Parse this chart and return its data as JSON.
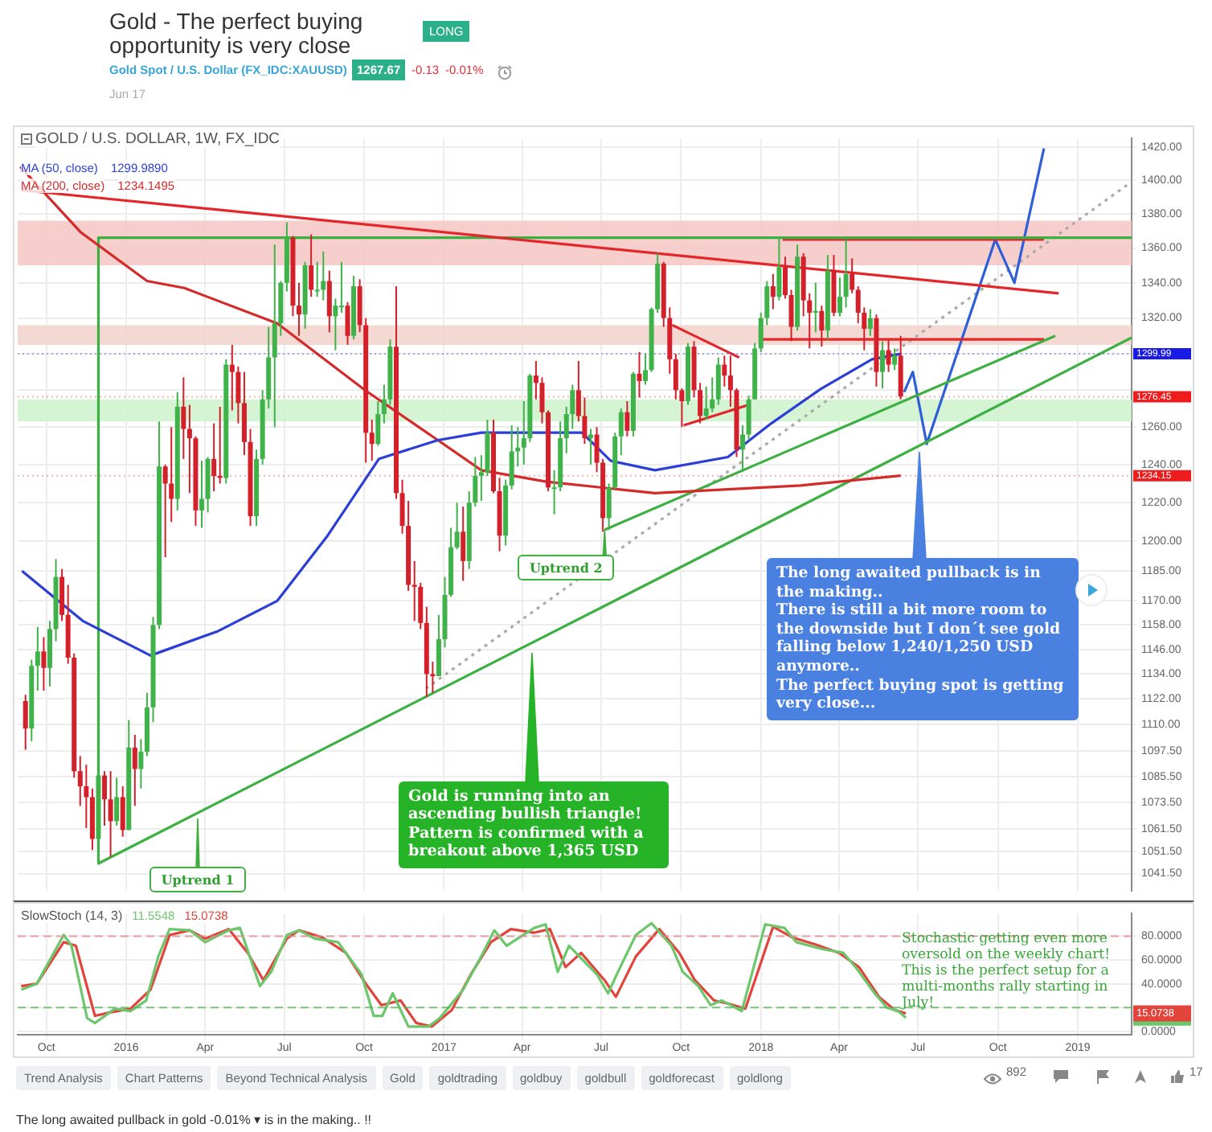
{
  "chart_data": [
    {
      "type": "candlestick",
      "title": "Gold - The perfect buying opportunity is very close",
      "subtitle": "GOLD / U.S. DOLLAR, 1W, FX_IDC",
      "series": [
        {
          "type": "candlestick",
          "x": [
            "2015-09-07",
            "2015-09-14",
            "2015-09-21",
            "2015-09-28",
            "2015-10-05",
            "2015-10-12",
            "2015-10-19",
            "2015-10-26",
            "2015-11-02",
            "2015-11-09",
            "2015-11-16",
            "2015-11-23",
            "2015-11-30",
            "2015-12-07",
            "2015-12-14",
            "2015-12-21",
            "2015-12-28",
            "2016-01-04",
            "2016-01-11",
            "2016-01-18",
            "2016-01-25",
            "2016-02-01",
            "2016-02-08",
            "2016-02-15",
            "2016-02-22",
            "2016-02-29",
            "2016-03-07",
            "2016-03-14",
            "2016-03-21",
            "2016-03-28",
            "2016-04-04",
            "2016-04-11",
            "2016-04-18",
            "2016-04-25",
            "2016-05-02",
            "2016-05-09",
            "2016-05-16",
            "2016-05-23",
            "2016-05-30",
            "2016-06-06",
            "2016-06-13",
            "2016-06-20",
            "2016-06-27",
            "2016-07-04",
            "2016-07-11",
            "2016-07-18",
            "2016-07-25",
            "2016-08-01",
            "2016-08-08",
            "2016-08-15",
            "2016-08-22",
            "2016-08-29",
            "2016-09-05",
            "2016-09-12",
            "2016-09-19",
            "2016-09-26",
            "2016-10-03",
            "2016-10-10",
            "2016-10-17",
            "2016-10-24",
            "2016-10-31",
            "2016-11-07",
            "2016-11-14",
            "2016-11-21",
            "2016-11-28",
            "2016-12-05",
            "2016-12-12",
            "2016-12-19",
            "2016-12-26",
            "2017-01-02",
            "2017-01-09",
            "2017-01-16",
            "2017-01-23",
            "2017-01-30",
            "2017-02-06",
            "2017-02-13",
            "2017-02-20",
            "2017-02-27",
            "2017-03-06",
            "2017-03-13",
            "2017-03-20",
            "2017-03-27",
            "2017-04-03",
            "2017-04-10",
            "2017-04-17",
            "2017-04-24",
            "2017-05-01",
            "2017-05-08",
            "2017-05-15",
            "2017-05-22",
            "2017-05-29",
            "2017-06-05",
            "2017-06-12",
            "2017-06-19",
            "2017-06-26",
            "2017-07-03",
            "2017-07-10",
            "2017-07-17",
            "2017-07-24",
            "2017-07-31",
            "2017-08-07",
            "2017-08-14",
            "2017-08-21",
            "2017-08-28",
            "2017-09-04",
            "2017-09-11",
            "2017-09-18",
            "2017-09-25",
            "2017-10-02",
            "2017-10-09",
            "2017-10-16",
            "2017-10-23",
            "2017-10-30",
            "2017-11-06",
            "2017-11-13",
            "2017-11-20",
            "2017-11-27",
            "2017-12-04",
            "2017-12-11",
            "2017-12-18",
            "2017-12-25",
            "2018-01-01",
            "2018-01-08",
            "2018-01-15",
            "2018-01-22",
            "2018-01-29",
            "2018-02-05",
            "2018-02-12",
            "2018-02-19",
            "2018-02-26",
            "2018-03-05",
            "2018-03-12",
            "2018-03-19",
            "2018-03-26",
            "2018-04-02",
            "2018-04-09",
            "2018-04-16",
            "2018-04-23",
            "2018-04-30",
            "2018-05-07",
            "2018-05-14",
            "2018-05-21",
            "2018-05-28",
            "2018-06-04",
            "2018-06-11"
          ],
          "ohlc": [
            [
              1121,
              1124,
              1098,
              1108
            ],
            [
              1108,
              1141,
              1102,
              1138
            ],
            [
              1138,
              1157,
              1126,
              1145
            ],
            [
              1145,
              1152,
              1126,
              1137
            ],
            [
              1137,
              1160,
              1128,
              1156
            ],
            [
              1156,
              1191,
              1150,
              1182
            ],
            [
              1182,
              1186,
              1160,
              1163
            ],
            [
              1163,
              1178,
              1139,
              1142
            ],
            [
              1142,
              1144,
              1085,
              1088
            ],
            [
              1088,
              1095,
              1072,
              1081
            ],
            [
              1081,
              1091,
              1062,
              1076
            ],
            [
              1076,
              1080,
              1052,
              1057
            ],
            [
              1057,
              1088,
              1046,
              1086
            ],
            [
              1086,
              1088,
              1063,
              1075
            ],
            [
              1075,
              1088,
              1049,
              1065
            ],
            [
              1065,
              1085,
              1063,
              1076
            ],
            [
              1076,
              1081,
              1058,
              1061
            ],
            [
              1061,
              1112,
              1061,
              1099
            ],
            [
              1099,
              1105,
              1072,
              1089
            ],
            [
              1089,
              1103,
              1080,
              1097
            ],
            [
              1097,
              1125,
              1095,
              1118
            ],
            [
              1118,
              1162,
              1111,
              1158
            ],
            [
              1158,
              1263,
              1156,
              1239
            ],
            [
              1239,
              1240,
              1192,
              1230
            ],
            [
              1230,
              1260,
              1210,
              1222
            ],
            [
              1222,
              1279,
              1216,
              1271
            ],
            [
              1271,
              1287,
              1243,
              1259
            ],
            [
              1259,
              1272,
              1225,
              1254
            ],
            [
              1254,
              1255,
              1208,
              1216
            ],
            [
              1216,
              1242,
              1207,
              1222
            ],
            [
              1222,
              1244,
              1215,
              1243
            ],
            [
              1243,
              1262,
              1226,
              1234
            ],
            [
              1234,
              1271,
              1230,
              1233
            ],
            [
              1233,
              1297,
              1230,
              1294
            ],
            [
              1294,
              1305,
              1269,
              1290
            ],
            [
              1290,
              1293,
              1262,
              1273
            ],
            [
              1273,
              1290,
              1245,
              1252
            ],
            [
              1252,
              1259,
              1208,
              1213
            ],
            [
              1213,
              1248,
              1208,
              1243
            ],
            [
              1243,
              1280,
              1240,
              1275
            ],
            [
              1275,
              1315,
              1270,
              1298
            ],
            [
              1298,
              1362,
              1260,
              1317
            ],
            [
              1317,
              1341,
              1310,
              1340
            ],
            [
              1340,
              1375,
              1335,
              1366
            ],
            [
              1366,
              1367,
              1321,
              1327
            ],
            [
              1327,
              1340,
              1310,
              1322
            ],
            [
              1322,
              1352,
              1314,
              1350
            ],
            [
              1350,
              1368,
              1332,
              1336
            ],
            [
              1336,
              1352,
              1332,
              1336
            ],
            [
              1336,
              1358,
              1330,
              1341
            ],
            [
              1341,
              1347,
              1312,
              1321
            ],
            [
              1321,
              1331,
              1302,
              1327
            ],
            [
              1327,
              1352,
              1323,
              1327
            ],
            [
              1327,
              1329,
              1305,
              1310
            ],
            [
              1310,
              1344,
              1308,
              1338
            ],
            [
              1338,
              1342,
              1312,
              1316
            ],
            [
              1316,
              1320,
              1241,
              1257
            ],
            [
              1257,
              1264,
              1242,
              1251
            ],
            [
              1251,
              1274,
              1250,
              1267
            ],
            [
              1267,
              1283,
              1262,
              1275
            ],
            [
              1275,
              1308,
              1272,
              1304
            ],
            [
              1304,
              1338,
              1222,
              1225
            ],
            [
              1225,
              1232,
              1204,
              1208
            ],
            [
              1208,
              1221,
              1175,
              1178
            ],
            [
              1178,
              1190,
              1160,
              1177
            ],
            [
              1177,
              1179,
              1156,
              1159
            ],
            [
              1159,
              1167,
              1123,
              1134
            ],
            [
              1134,
              1140,
              1125,
              1133
            ],
            [
              1133,
              1163,
              1133,
              1151
            ],
            [
              1151,
              1182,
              1147,
              1173
            ],
            [
              1173,
              1207,
              1172,
              1197
            ],
            [
              1197,
              1220,
              1196,
              1205
            ],
            [
              1205,
              1218,
              1180,
              1190
            ],
            [
              1190,
              1226,
              1186,
              1220
            ],
            [
              1220,
              1244,
              1218,
              1234
            ],
            [
              1234,
              1245,
              1221,
              1236
            ],
            [
              1236,
              1264,
              1234,
              1257
            ],
            [
              1257,
              1264,
              1225,
              1226
            ],
            [
              1226,
              1233,
              1195,
              1203
            ],
            [
              1203,
              1232,
              1198,
              1229
            ],
            [
              1229,
              1261,
              1227,
              1247
            ],
            [
              1247,
              1260,
              1239,
              1249
            ],
            [
              1249,
              1274,
              1240,
              1254
            ],
            [
              1254,
              1289,
              1252,
              1288
            ],
            [
              1288,
              1296,
              1275,
              1284
            ],
            [
              1284,
              1287,
              1262,
              1268
            ],
            [
              1268,
              1269,
              1226,
              1228
            ],
            [
              1228,
              1237,
              1214,
              1228
            ],
            [
              1228,
              1263,
              1226,
              1254
            ],
            [
              1254,
              1271,
              1246,
              1267
            ],
            [
              1267,
              1283,
              1259,
              1280
            ],
            [
              1280,
              1296,
              1263,
              1266
            ],
            [
              1266,
              1276,
              1251,
              1254
            ],
            [
              1254,
              1259,
              1240,
              1256
            ],
            [
              1256,
              1260,
              1236,
              1241
            ],
            [
              1241,
              1243,
              1205,
              1212
            ],
            [
              1212,
              1230,
              1206,
              1228
            ],
            [
              1228,
              1257,
              1227,
              1255
            ],
            [
              1255,
              1270,
              1245,
              1268
            ],
            [
              1268,
              1274,
              1255,
              1258
            ],
            [
              1258,
              1290,
              1255,
              1289
            ],
            [
              1289,
              1301,
              1276,
              1285
            ],
            [
              1285,
              1300,
              1283,
              1291
            ],
            [
              1291,
              1326,
              1290,
              1325
            ],
            [
              1325,
              1357,
              1323,
              1351
            ],
            [
              1351,
              1352,
              1315,
              1320
            ],
            [
              1320,
              1326,
              1289,
              1297
            ],
            [
              1297,
              1300,
              1275,
              1280
            ],
            [
              1280,
              1281,
              1260,
              1274
            ],
            [
              1274,
              1306,
              1272,
              1304
            ],
            [
              1304,
              1307,
              1276,
              1280
            ],
            [
              1280,
              1284,
              1262,
              1266
            ],
            [
              1266,
              1282,
              1264,
              1270
            ],
            [
              1270,
              1287,
              1268,
              1275
            ],
            [
              1275,
              1298,
              1272,
              1294
            ],
            [
              1294,
              1299,
              1282,
              1288
            ],
            [
              1288,
              1299,
              1271,
              1280
            ],
            [
              1280,
              1281,
              1244,
              1248
            ],
            [
              1248,
              1261,
              1236,
              1256
            ],
            [
              1256,
              1277,
              1253,
              1275
            ],
            [
              1275,
              1306,
              1275,
              1303
            ],
            [
              1303,
              1323,
              1301,
              1320
            ],
            [
              1320,
              1341,
              1316,
              1338
            ],
            [
              1338,
              1345,
              1325,
              1332
            ],
            [
              1332,
              1366,
              1330,
              1349
            ],
            [
              1349,
              1355,
              1331,
              1333
            ],
            [
              1333,
              1336,
              1307,
              1315
            ],
            [
              1315,
              1362,
              1313,
              1355
            ],
            [
              1355,
              1357,
              1321,
              1330
            ],
            [
              1330,
              1334,
              1303,
              1323
            ],
            [
              1323,
              1340,
              1312,
              1324
            ],
            [
              1324,
              1327,
              1304,
              1313
            ],
            [
              1313,
              1356,
              1308,
              1347
            ],
            [
              1347,
              1356,
              1321,
              1323
            ],
            [
              1323,
              1343,
              1321,
              1332
            ],
            [
              1332,
              1365,
              1326,
              1345
            ],
            [
              1345,
              1354,
              1334,
              1336
            ],
            [
              1336,
              1338,
              1317,
              1323
            ],
            [
              1323,
              1326,
              1302,
              1314
            ],
            [
              1314,
              1325,
              1310,
              1320
            ],
            [
              1320,
              1322,
              1282,
              1290
            ],
            [
              1290,
              1307,
              1281,
              1302
            ],
            [
              1302,
              1308,
              1290,
              1294
            ],
            [
              1294,
              1303,
              1291,
              1299
            ],
            [
              1299,
              1310,
              1275,
              1276.45
            ]
          ]
        },
        {
          "type": "line",
          "name": "MA (50, close)",
          "color": "#2b3fd6",
          "x": [
            "2015-09-03",
            "2015-11-12",
            "2016-01-29",
            "2016-04-16",
            "2016-06-23",
            "2016-08-20",
            "2016-10-18",
            "2016-12-25",
            "2017-02-13",
            "2017-06-09",
            "2017-07-12",
            "2017-09-01",
            "2017-11-24",
            "2018-01-13",
            "2018-03-12",
            "2018-05-09",
            "2018-06-11"
          ],
          "values": [
            1185,
            1160,
            1143,
            1155,
            1170,
            1203,
            1243,
            1253,
            1257,
            1257,
            1242,
            1237,
            1244,
            1262,
            1281,
            1297,
            1299.99
          ]
        },
        {
          "type": "line",
          "name": "MA (200, close)",
          "color": "#d42a2a",
          "x": [
            "2015-09-01",
            "2015-11-10",
            "2016-01-25",
            "2016-03-08",
            "2016-06-23",
            "2016-10-02",
            "2016-12-25",
            "2017-02-13",
            "2017-04-29",
            "2017-09-01",
            "2017-11-24",
            "2018-02-16",
            "2018-06-11"
          ],
          "values": [
            1408,
            1369,
            1341,
            1337,
            1317,
            1280,
            1253,
            1237,
            1231,
            1225,
            1227,
            1229,
            1234.15
          ]
        },
        {
          "type": "line",
          "color": "#e3262a",
          "x": [
            "2015-09-02",
            "2018-12-10"
          ],
          "values": [
            1394,
            1334
          ]
        },
        {
          "type": "line",
          "color": "#3cb043",
          "x": [
            "2015-11-30",
            "2019-03-04"
          ],
          "values": [
            1366,
            1366
          ]
        },
        {
          "type": "line",
          "color": "#3cb043",
          "x": [
            "2015-11-30",
            "2015-11-30"
          ],
          "values": [
            1366,
            1046
          ]
        },
        {
          "type": "line",
          "color": "#3cb043",
          "x": [
            "2015-11-30",
            "2019-03-04"
          ],
          "values": [
            1046,
            1309
          ]
        },
        {
          "type": "line",
          "color": "#3cb043",
          "x": [
            "2017-07-05",
            "2018-12-06"
          ],
          "values": [
            1206,
            1310
          ]
        },
        {
          "type": "line",
          "color": "#e3262a",
          "x": [
            "2018-01-26",
            "2018-11-23"
          ],
          "values": [
            1365,
            1365
          ]
        },
        {
          "type": "line",
          "color": "#e3262a",
          "x": [
            "2017-12-31",
            "2018-11-23"
          ],
          "values": [
            1308,
            1308
          ]
        },
        {
          "type": "line",
          "color": "#e3262a",
          "x": [
            "2017-09-21",
            "2017-12-07"
          ],
          "values": [
            1316,
            1298
          ]
        },
        {
          "type": "line",
          "color": "#e3262a",
          "x": [
            "2017-10-04",
            "2017-12-18"
          ],
          "values": [
            1261,
            1272
          ]
        },
        {
          "type": "line",
          "color": "#2f5fd8",
          "x": [
            "2018-06-15",
            "2018-06-25",
            "2018-07-11",
            "2018-09-28",
            "2018-10-20",
            "2018-11-23"
          ],
          "values": [
            1279,
            1290,
            1251,
            1365,
            1340,
            1419
          ]
        },
        {
          "type": "line",
          "color": "#aaaaaa",
          "line_style": "dotted",
          "x": [
            "2016-12-11",
            "2019-03-04"
          ],
          "values": [
            1127,
            1399
          ]
        }
      ],
      "xlim": [
        "2015-08-29",
        "2019-03-04"
      ],
      "ylim": [
        1034,
        1425
      ],
      "log": true,
      "xticks": [
        {
          "value": "2015-10-01",
          "label": null
        },
        {
          "value": "2016-01-01",
          "label": null
        },
        {
          "value": "2016-04-01",
          "label": null
        },
        {
          "value": "2016-07-01",
          "label": null
        },
        {
          "value": "2016-10-01",
          "label": null
        },
        {
          "value": "2017-01-01",
          "label": null
        },
        {
          "value": "2017-04-01",
          "label": null
        },
        {
          "value": "2017-07-01",
          "label": null
        },
        {
          "value": "2017-10-01",
          "label": null
        },
        {
          "value": "2018-01-01",
          "label": null
        },
        {
          "value": "2018-04-01",
          "label": null
        },
        {
          "value": "2018-07-01",
          "label": null
        },
        {
          "value": "2018-10-01",
          "label": null
        },
        {
          "value": "2019-01-01",
          "label": null
        }
      ],
      "yticks": [
        {
          "value": 1041.5,
          "label": "1041.50"
        },
        {
          "value": 1051.5,
          "label": "1051.50"
        },
        {
          "value": 1061.5,
          "label": "1061.50"
        },
        {
          "value": 1073.5,
          "label": "1073.50"
        },
        {
          "value": 1085.5,
          "label": "1085.50"
        },
        {
          "value": 1097.5,
          "label": "1097.50"
        },
        {
          "value": 1110,
          "label": "1110.00"
        },
        {
          "value": 1122,
          "label": "1122.00"
        },
        {
          "value": 1134,
          "label": "1134.00"
        },
        {
          "value": 1146,
          "label": "1146.00"
        },
        {
          "value": 1158,
          "label": "1158.00"
        },
        {
          "value": 1170,
          "label": "1170.00"
        },
        {
          "value": 1185,
          "label": "1185.00"
        },
        {
          "value": 1200,
          "label": "1200.00"
        },
        {
          "value": 1220,
          "label": "1220.00"
        },
        {
          "value": 1240,
          "label": "1240.00"
        },
        {
          "value": 1260,
          "label": "1260.00"
        },
        {
          "value": 1280,
          "label": null
        },
        {
          "value": 1300,
          "label": null
        },
        {
          "value": 1320,
          "label": "1320.00"
        },
        {
          "value": 1340,
          "label": "1340.00"
        },
        {
          "value": 1360,
          "label": "1360.00"
        },
        {
          "value": 1380,
          "label": "1380.00"
        },
        {
          "value": 1400,
          "label": "1400.00"
        },
        {
          "value": 1420,
          "label": "1420.00"
        }
      ],
      "grid": true,
      "legend": "top left",
      "tick_labels": "y",
      "ref_lines": [
        {
          "axis": "y",
          "value": 1299.99,
          "label": "1299.99",
          "color": "#1a1ae6"
        },
        {
          "axis": "y",
          "value": 1276.45,
          "label": "1276.45",
          "color": "#ee1c1c"
        },
        {
          "axis": "y",
          "value": 1234.15,
          "label": "1234.15",
          "color": "#ee1c1c"
        }
      ],
      "bands": [
        {
          "axis": "y",
          "from": 1350,
          "to": 1376,
          "color": "#f5c7c3"
        },
        {
          "axis": "y",
          "from": 1305,
          "to": 1316,
          "color": "#f2d2ca"
        },
        {
          "axis": "y",
          "from": 1263,
          "to": 1275,
          "color": "#cdf2cd"
        }
      ],
      "annotations": [
        "1299.9890",
        "1234.1495",
        "LONG",
        "Gold Spot / U.S. Dollar (FX_IDC:XAUUSD)",
        "1267.67",
        "-0.13",
        "-0.01%",
        "Jun 17",
        "Trend Analysis",
        "Chart Patterns",
        "Beyond Technical Analysis",
        "Gold",
        "goldtrading",
        "goldbuy",
        "goldbull",
        "goldforecast",
        "goldlong",
        "892",
        "17",
        "The long awaited pullback in gold -0.01% ▾ is in the making.. !!",
        {
          "text": "Uptrend 2",
          "x": "2017-07-05",
          "y": 1206
        },
        "Uptrend 1",
        "Gold is running into an ascending bullish triangle! Pattern is confirmed with a breakout above 1,365 USD",
        "The long awaited pullback is in the making..\nThere is still a bit more room to the downside but I don´t see gold falling below 1,240/1,250 USD anymore..\nThe perfect buying spot is getting very close..."
      ]
    },
    {
      "type": "line",
      "title": "SlowStoch (14, 3)",
      "series": [
        {
          "name": "11.5548",
          "color": "#6cc66c",
          "x": [
            "2015-09-02",
            "2015-09-20",
            "2015-10-21",
            "2015-10-30",
            "2015-11-17",
            "2015-11-26",
            "2015-12-19",
            "2016-01-06",
            "2016-01-24",
            "2016-02-07",
            "2016-02-20",
            "2016-03-14",
            "2016-04-01",
            "2016-04-28",
            "2016-05-11",
            "2016-06-03",
            "2016-06-16",
            "2016-07-04",
            "2016-07-18",
            "2016-08-05",
            "2016-09-01",
            "2016-09-28",
            "2016-10-12",
            "2016-10-22",
            "2016-11-03",
            "2016-11-21",
            "2016-12-14",
            "2016-12-27",
            "2017-01-23",
            "2017-02-15",
            "2017-02-28",
            "2017-03-14",
            "2017-04-15",
            "2017-04-28",
            "2017-05-12",
            "2017-05-25",
            "2017-06-26",
            "2017-07-09",
            "2017-07-23",
            "2017-08-10",
            "2017-08-28",
            "2017-09-20",
            "2017-10-03",
            "2017-10-21",
            "2017-11-04",
            "2017-11-17",
            "2017-12-10",
            "2018-01-06",
            "2018-01-28",
            "2018-02-11",
            "2018-03-14",
            "2018-04-06",
            "2018-04-20",
            "2018-05-12",
            "2018-05-26",
            "2018-06-08",
            "2018-06-17"
          ],
          "values": [
            35,
            40,
            81,
            72,
            11,
            7,
            19,
            17,
            26,
            63,
            86,
            85,
            75,
            85,
            87,
            38,
            50,
            81,
            85,
            78,
            75,
            48,
            13,
            13,
            32,
            4,
            4,
            11,
            35,
            66,
            85,
            72,
            87,
            90,
            50,
            72,
            48,
            32,
            54,
            81,
            91,
            72,
            50,
            38,
            22,
            26,
            17,
            90,
            87,
            75,
            69,
            66,
            54,
            32,
            20,
            17,
            11.5548
          ]
        },
        {
          "name": "15.0738",
          "color": "#e2443c",
          "x": [
            "2015-09-02",
            "2015-09-20",
            "2015-10-21",
            "2015-11-04",
            "2015-11-26",
            "2015-12-14",
            "2016-01-06",
            "2016-01-29",
            "2016-02-20",
            "2016-03-14",
            "2016-04-01",
            "2016-04-28",
            "2016-05-20",
            "2016-06-07",
            "2016-07-04",
            "2016-07-18",
            "2016-08-14",
            "2016-09-10",
            "2016-10-03",
            "2016-10-21",
            "2016-11-12",
            "2016-11-30",
            "2016-12-18",
            "2017-01-10",
            "2017-02-01",
            "2017-02-24",
            "2017-03-19",
            "2017-04-15",
            "2017-05-03",
            "2017-05-21",
            "2017-06-08",
            "2017-07-05",
            "2017-07-18",
            "2017-08-10",
            "2017-09-06",
            "2017-09-29",
            "2017-10-17",
            "2017-11-08",
            "2017-11-26",
            "2017-12-14",
            "2018-01-15",
            "2018-02-06",
            "2018-03-05",
            "2018-04-01",
            "2018-04-24",
            "2018-05-17",
            "2018-06-04",
            "2018-06-17"
          ],
          "values": [
            38,
            40,
            75,
            72,
            13,
            16,
            19,
            35,
            81,
            85,
            78,
            86,
            66,
            43,
            78,
            85,
            79,
            66,
            40,
            22,
            26,
            7,
            4,
            18,
            48,
            75,
            86,
            83,
            86,
            54,
            66,
            43,
            29,
            63,
            86,
            66,
            43,
            26,
            23,
            19,
            88,
            79,
            73,
            66,
            54,
            29,
            18,
            15.0738
          ]
        }
      ],
      "xlim": [
        "2015-08-29",
        "2019-03-04"
      ],
      "ylim": [
        -3,
        99
      ],
      "xticks": [
        {
          "value": "2015-10-01",
          "label": "Oct"
        },
        {
          "value": "2016-01-01",
          "label": "2016"
        },
        {
          "value": "2016-04-01",
          "label": "Apr"
        },
        {
          "value": "2016-07-01",
          "label": "Jul"
        },
        {
          "value": "2016-10-01",
          "label": "Oct"
        },
        {
          "value": "2017-01-01",
          "label": "2017"
        },
        {
          "value": "2017-04-01",
          "label": "Apr"
        },
        {
          "value": "2017-07-01",
          "label": "Jul"
        },
        {
          "value": "2017-10-01",
          "label": "Oct"
        },
        {
          "value": "2018-01-01",
          "label": "2018"
        },
        {
          "value": "2018-04-01",
          "label": "Apr"
        },
        {
          "value": "2018-07-01",
          "label": "Jul"
        },
        {
          "value": "2018-10-01",
          "label": "Oct"
        },
        {
          "value": "2019-01-01",
          "label": "2019"
        }
      ],
      "yticks": [
        {
          "value": 0,
          "label": "0.0000"
        },
        {
          "value": 20,
          "label": null
        },
        {
          "value": 40,
          "label": "40.0000"
        },
        {
          "value": 60,
          "label": "60.0000"
        },
        {
          "value": 80,
          "label": "80.0000"
        }
      ],
      "grid": true,
      "legend": "top left",
      "ref_lines": [
        {
          "axis": "y",
          "value": 80,
          "color": "#e08a8a",
          "line_style": "dashed"
        },
        {
          "axis": "y",
          "value": 20,
          "color": "#5cb85c",
          "line_style": "dashed"
        }
      ],
      "annotations": [
        "Stochastic getting even more oversold on the weekly chart!\nThis is the perfect setup for a multi-months rally starting in July!"
      ]
    }
  ]
}
